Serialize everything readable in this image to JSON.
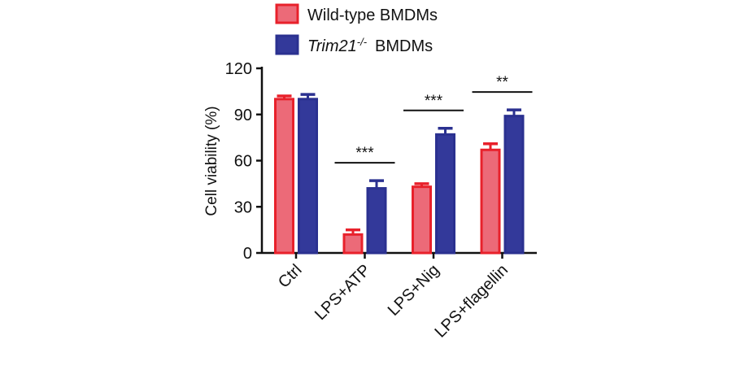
{
  "chart_data": {
    "type": "bar",
    "ylabel": "Cell viability (%)",
    "ylim": [
      0,
      120
    ],
    "yticks": [
      "0",
      "30",
      "60",
      "90",
      "120"
    ],
    "categories": [
      "Ctrl",
      "LPS+ATP",
      "LPS+Nig",
      "LPS+flagellin"
    ],
    "series": [
      {
        "name": "Wild-type  BMDMs",
        "color": "#e8212b",
        "fill": "#ec6a78",
        "values": [
          100,
          12,
          43,
          67
        ],
        "errors": [
          2,
          3,
          2,
          4
        ]
      },
      {
        "name_italic": "Trim21",
        "name_superscript": "-/-",
        "name_rest": "BMDMs",
        "color": "#2b3190",
        "fill": "#33399a",
        "values": [
          100,
          42,
          77,
          89
        ],
        "errors": [
          3,
          5,
          4,
          4
        ]
      }
    ],
    "significance": [
      "",
      "***",
      "***",
      "**"
    ],
    "legend_position": "top"
  }
}
